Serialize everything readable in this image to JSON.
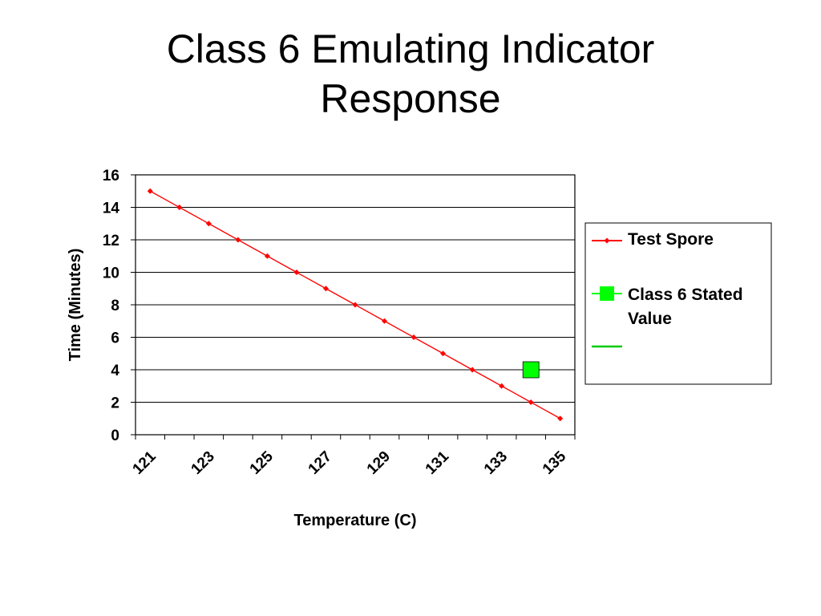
{
  "title": {
    "line1": "Class 6 Emulating Indicator",
    "line2": "Response"
  },
  "chart_data": {
    "type": "line",
    "xlabel": "Temperature (C)",
    "ylabel": "Time (Minutes)",
    "x_ticks": [
      "121",
      "123",
      "125",
      "127",
      "129",
      "131",
      "133",
      "135"
    ],
    "y_ticks": [
      "0",
      "2",
      "4",
      "6",
      "8",
      "10",
      "12",
      "14",
      "16"
    ],
    "xlim": [
      121,
      136
    ],
    "ylim": [
      0,
      16
    ],
    "grid": "horizontal",
    "legend_position": "right",
    "series": [
      {
        "name": "Test Spore",
        "marker": "diamond",
        "color": "#ff0000",
        "x": [
          121,
          122,
          123,
          124,
          125,
          126,
          127,
          128,
          129,
          130,
          131,
          132,
          133,
          134,
          135
        ],
        "y": [
          15,
          14,
          13,
          12,
          11,
          10,
          9,
          8,
          7,
          6,
          5,
          4,
          3,
          2,
          1
        ]
      },
      {
        "name": "Class 6 Stated Value",
        "marker": "square",
        "color": "#00ff00",
        "x": [
          134
        ],
        "y": [
          4
        ]
      },
      {
        "name": "",
        "marker": "none",
        "color": "#00cc00",
        "x": [],
        "y": []
      }
    ]
  }
}
